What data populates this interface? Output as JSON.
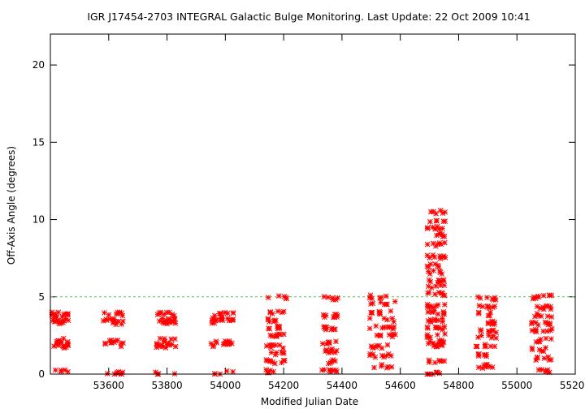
{
  "chart_data": {
    "type": "scatter",
    "title": "IGR J17454-2703   INTEGRAL Galactic Bulge Monitoring.  Last Update: 22 Oct 2009 10:41",
    "xlabel": "Modified Julian Date",
    "ylabel": "Off-Axis Angle (degrees)",
    "xlim": [
      53400,
      55200
    ],
    "ylim": [
      0,
      22
    ],
    "x_ticks": [
      53600,
      53800,
      54000,
      54200,
      54400,
      54600,
      54800,
      55000,
      55200
    ],
    "y_ticks": [
      0,
      5,
      10,
      15,
      20
    ],
    "reference_line": {
      "y": 5,
      "style": "dashed",
      "color": "#59c659"
    },
    "marker_color": "#ff0000",
    "marker": "asterisk",
    "grid": false,
    "observation_groups": [
      {
        "x_range": [
          53405,
          53465
        ],
        "y_clusters": [
          0.2,
          1.8,
          2.0,
          2.2,
          3.3,
          3.5,
          3.8,
          3.9
        ]
      },
      {
        "x_range": [
          53580,
          53650
        ],
        "y_clusters": [
          0.1,
          1.9,
          2.1,
          3.3,
          3.5,
          3.9
        ]
      },
      {
        "x_range": [
          53760,
          53830
        ],
        "y_clusters": [
          0.1,
          1.8,
          2.0,
          2.2,
          3.3,
          3.5,
          3.9
        ]
      },
      {
        "x_range": [
          53950,
          54030
        ],
        "y_clusters": [
          0.1,
          1.9,
          2.1,
          3.4,
          3.6,
          3.9
        ]
      },
      {
        "x_range": [
          54140,
          54210
        ],
        "y_clusters": [
          0.2,
          0.8,
          1.3,
          1.8,
          2.5,
          3.0,
          3.5,
          4.0,
          5.0
        ]
      },
      {
        "x_range": [
          54330,
          54385
        ],
        "y_clusters": [
          0.2,
          0.8,
          1.5,
          2.0,
          3.0,
          3.8,
          4.9
        ]
      },
      {
        "x_range": [
          54495,
          54585
        ],
        "y_clusters": [
          0.5,
          1.2,
          1.8,
          2.5,
          3.0,
          3.5,
          4.0,
          4.6,
          5.0
        ]
      },
      {
        "x_range": [
          54690,
          54755
        ],
        "y_clusters": [
          0.0,
          0.8,
          1.9,
          2.1,
          2.5,
          3.0,
          3.5,
          4.0,
          4.4,
          5.2,
          5.7,
          6.0,
          6.6,
          7.0,
          7.6,
          8.4,
          9.0,
          9.5,
          9.8,
          10.5
        ]
      },
      {
        "x_range": [
          54860,
          54930
        ],
        "y_clusters": [
          0.5,
          1.2,
          1.8,
          2.4,
          2.8,
          3.3,
          3.9,
          4.4,
          4.9
        ]
      },
      {
        "x_range": [
          55050,
          55120
        ],
        "y_clusters": [
          0.2,
          1.0,
          1.6,
          2.2,
          2.8,
          3.3,
          3.8,
          4.3,
          5.0
        ]
      }
    ]
  }
}
